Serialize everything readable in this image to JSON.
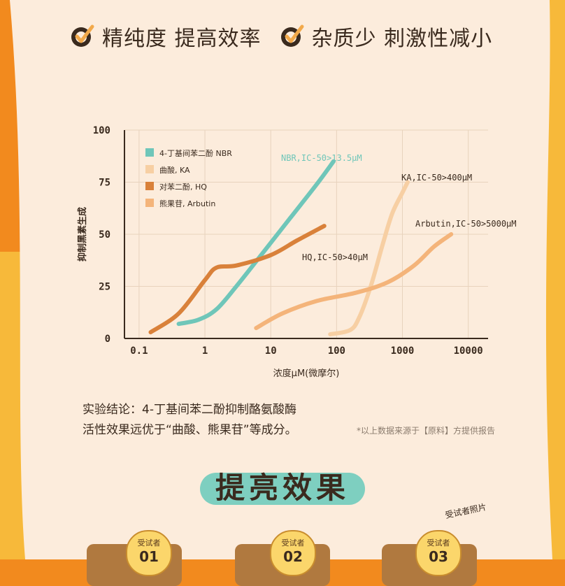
{
  "header": {
    "benefit_1": "精纯度 提高效率",
    "benefit_2": "杂质少 刺激性减小",
    "check_icon": "check-icon"
  },
  "chart_data": {
    "type": "line",
    "title": "",
    "ylabel": "抑制黑素生成",
    "xlabel": "浓度μM(微摩尔)",
    "x_scale": "log",
    "xlim": [
      0.06,
      20000
    ],
    "ylim": [
      0,
      100
    ],
    "x_ticks": [
      "0.1",
      "1",
      "10",
      "100",
      "1000",
      "10000"
    ],
    "x_tick_values": [
      0.1,
      1,
      10,
      100,
      1000,
      10000
    ],
    "y_ticks": [
      "0",
      "25",
      "50",
      "75",
      "100"
    ],
    "y_tick_values": [
      0,
      25,
      50,
      75,
      100
    ],
    "grid": true,
    "legend_position": "top-left",
    "series": [
      {
        "name": "4-丁基间苯二酚 NBR",
        "color": "#6fc6b9",
        "x": [
          0.4,
          0.8,
          1.5,
          3,
          8,
          20,
          50,
          90
        ],
        "y": [
          7,
          9,
          14,
          25,
          42,
          58,
          74,
          85
        ],
        "annotation": "NBR,IC-50>13.5μM"
      },
      {
        "name": "曲酸, KA",
        "color": "#f7cfa3",
        "x": [
          80,
          160,
          220,
          330,
          500,
          700,
          1000,
          1200
        ],
        "y": [
          2,
          4,
          10,
          25,
          45,
          60,
          70,
          75
        ],
        "annotation": "KA,IC-50>400μM"
      },
      {
        "name": "对苯二酚, HQ",
        "color": "#d9813a",
        "x": [
          0.15,
          0.4,
          1,
          1.5,
          3,
          10,
          25,
          65
        ],
        "y": [
          3,
          12,
          28,
          34,
          35,
          40,
          47,
          54
        ],
        "annotation": "HQ,IC-50>40μM"
      },
      {
        "name": "熊果苷, Arbutin",
        "color": "#f4b47a",
        "x": [
          6,
          15,
          50,
          200,
          600,
          1500,
          3000,
          5500
        ],
        "y": [
          5,
          12,
          18,
          22,
          27,
          35,
          44,
          50
        ],
        "annotation": "Arbutin,IC-50>5000μM"
      }
    ]
  },
  "conclusion": {
    "line_1": "实验结论：4-丁基间苯二酚抑制酪氨酸酶",
    "line_2": "活性效果远优于“曲酸、熊果苷”等成分。"
  },
  "source_note": "*以上数据来源于【原料】方提供报告",
  "section_title": "提亮效果",
  "photo_tag": "受试者照片",
  "subjects": [
    {
      "label": "受试者",
      "number": "01"
    },
    {
      "label": "受试者",
      "number": "02"
    },
    {
      "label": "受试者",
      "number": "03"
    }
  ]
}
